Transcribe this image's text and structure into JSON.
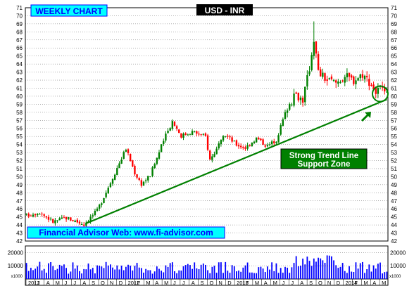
{
  "header": {
    "badge": "WEEKLY CHART",
    "title": "USD - INR"
  },
  "annotations": {
    "support_line1": "Strong Trend Line",
    "support_line2": "Support Zone",
    "website": "Financial Advisor Web: www.fi-advisor.com"
  },
  "colors": {
    "background": "#ffffff",
    "badge_fill": "#00ffff",
    "badge_text": "#0000ff",
    "title_fill": "#000000",
    "title_text": "#ffffff",
    "up_candle": "#008000",
    "down_candle": "#ff0000",
    "trend_line": "#008000",
    "support_fill": "#008000",
    "support_text": "#ffffff",
    "volume_bar": "#0000ff",
    "grid": "#000000"
  },
  "chart_data": {
    "type": "candlestick",
    "title": "USD - INR",
    "frequency": "weekly",
    "grid": true,
    "ylim": [
      42,
      71
    ],
    "y_ticks": [
      42,
      43,
      44,
      45,
      46,
      47,
      48,
      49,
      50,
      51,
      52,
      53,
      54,
      55,
      56,
      57,
      58,
      59,
      60,
      61,
      62,
      63,
      64,
      65,
      66,
      67,
      68,
      69,
      70,
      71
    ],
    "volume_ylim": [
      0,
      25000
    ],
    "volume_ticks": [
      {
        "value": 10000,
        "label": "10000"
      },
      {
        "value": 20000,
        "label": "20000"
      }
    ],
    "volume_unit_label": "x1000",
    "x_ticks": [
      "2011",
      "J",
      "A",
      "M",
      "J",
      "J",
      "A",
      "S",
      "O",
      "N",
      "D",
      "2012",
      "F",
      "M",
      "A",
      "M",
      "J",
      "J",
      "A",
      "S",
      "O",
      "N",
      "D",
      "2013",
      "F",
      "M",
      "A",
      "M",
      "J",
      "J",
      "A",
      "S",
      "O",
      "N",
      "D",
      "2014",
      "F",
      "M",
      "A",
      "M"
    ],
    "price_waypoints": [
      {
        "week": 0,
        "price": 45.2
      },
      {
        "week": 6,
        "price": 45.6
      },
      {
        "week": 12,
        "price": 44.4
      },
      {
        "week": 18,
        "price": 44.9
      },
      {
        "week": 26,
        "price": 44.1
      },
      {
        "week": 32,
        "price": 45.8
      },
      {
        "week": 38,
        "price": 49.3
      },
      {
        "week": 45,
        "price": 53.5
      },
      {
        "week": 49,
        "price": 50.5
      },
      {
        "week": 52,
        "price": 49.1
      },
      {
        "week": 56,
        "price": 50.2
      },
      {
        "week": 62,
        "price": 54.5
      },
      {
        "week": 66,
        "price": 56.9
      },
      {
        "week": 70,
        "price": 55.1
      },
      {
        "week": 75,
        "price": 55.6
      },
      {
        "week": 81,
        "price": 55.0
      },
      {
        "week": 83,
        "price": 52.1
      },
      {
        "week": 90,
        "price": 55.2
      },
      {
        "week": 95,
        "price": 54.0
      },
      {
        "week": 99,
        "price": 53.6
      },
      {
        "week": 104,
        "price": 54.8
      },
      {
        "week": 109,
        "price": 53.8
      },
      {
        "week": 113,
        "price": 54.6
      },
      {
        "week": 118,
        "price": 58.7
      },
      {
        "week": 122,
        "price": 60.2
      },
      {
        "week": 125,
        "price": 59.6
      },
      {
        "week": 128,
        "price": 63.5
      },
      {
        "week": 130,
        "price": 67.2
      },
      {
        "week": 132,
        "price": 63.0
      },
      {
        "week": 136,
        "price": 62.0
      },
      {
        "week": 140,
        "price": 61.7
      },
      {
        "week": 144,
        "price": 62.5
      },
      {
        "week": 148,
        "price": 62.0
      },
      {
        "week": 152,
        "price": 62.8
      },
      {
        "week": 156,
        "price": 61.5
      },
      {
        "week": 158,
        "price": 60.5
      },
      {
        "week": 160,
        "price": 61.0
      },
      {
        "week": 162,
        "price": 60.1
      }
    ],
    "price_high": 69.3,
    "trend_line": [
      {
        "week": 27,
        "price": 44.2
      },
      {
        "week": 163,
        "price": 59.6
      }
    ],
    "highlight_circle": {
      "week": 160,
      "price": 60.3
    }
  }
}
